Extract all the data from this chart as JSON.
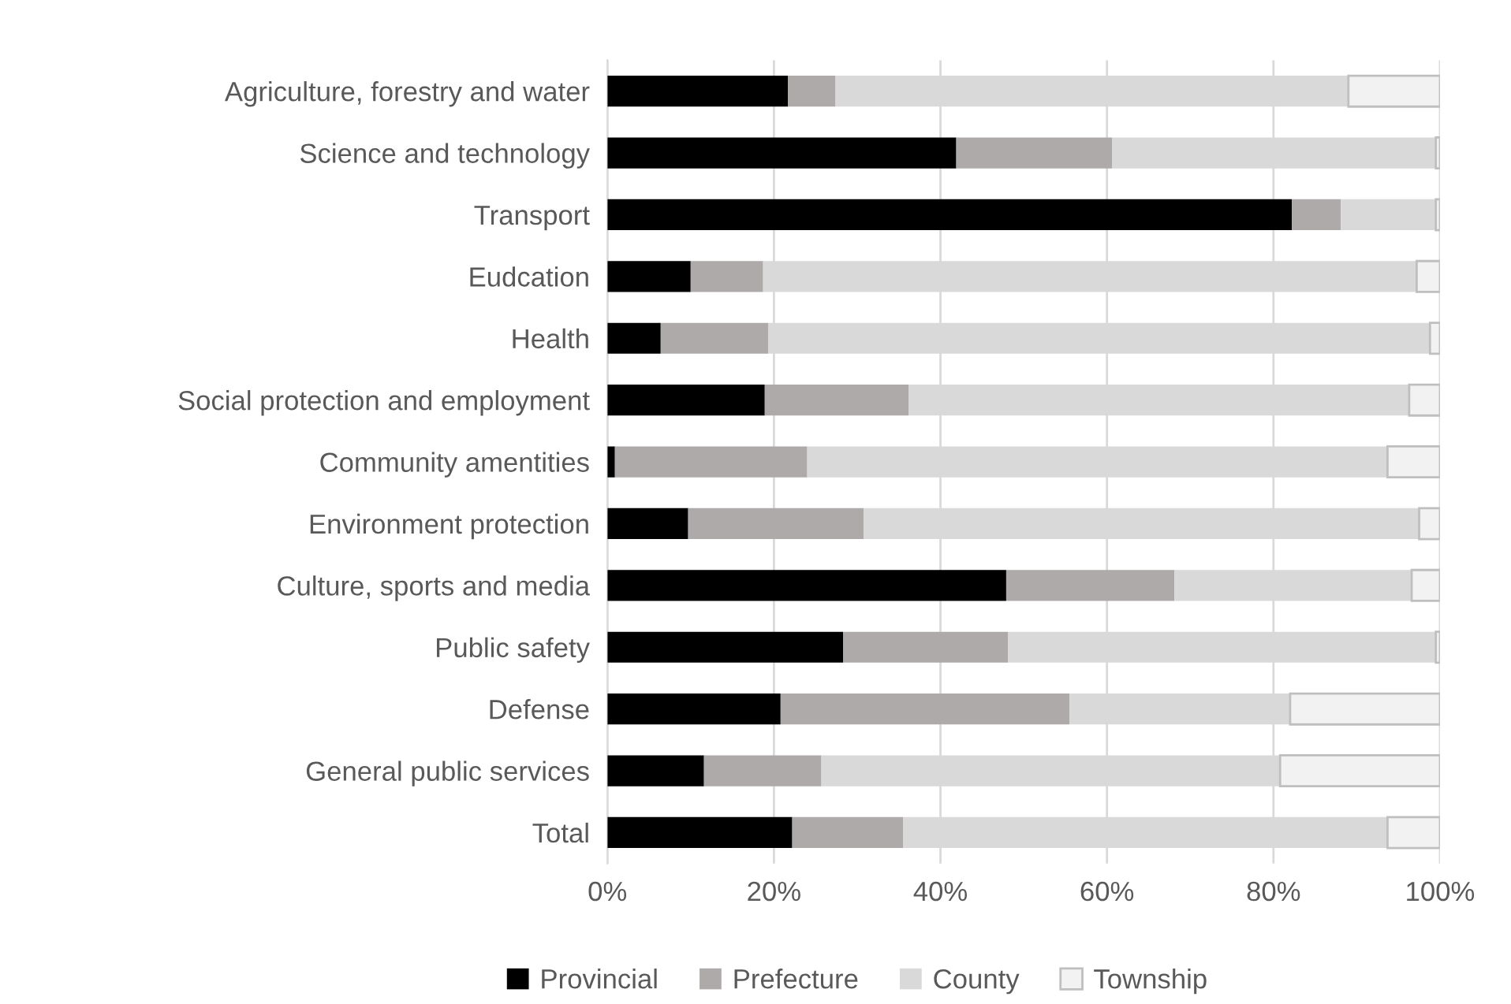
{
  "chart_data": {
    "type": "bar",
    "orientation": "horizontal",
    "stacked": true,
    "categories": [
      "Agriculture, forestry and water",
      "Science and technology",
      "Transport",
      "Eudcation",
      "Health",
      "Social protection and employment",
      "Community amentities",
      "Environment protection",
      "Culture, sports and media",
      "Public safety",
      "Defense",
      "General public services",
      "Total"
    ],
    "series": [
      {
        "name": "Provincial",
        "color": "#000000",
        "values": [
          21.7,
          41.9,
          82.2,
          10.0,
          6.4,
          18.9,
          0.9,
          9.7,
          47.9,
          28.3,
          20.8,
          11.6,
          22.2
        ]
      },
      {
        "name": "Prefecture",
        "color": "#aeaaaa",
        "values": [
          5.7,
          18.7,
          5.9,
          8.7,
          12.9,
          17.3,
          23.1,
          21.1,
          20.2,
          19.8,
          34.7,
          14.1,
          13.3
        ]
      },
      {
        "name": "County",
        "color": "#d9d9d9",
        "values": [
          61.6,
          38.9,
          11.4,
          78.5,
          79.5,
          60.1,
          69.7,
          66.7,
          28.5,
          51.4,
          26.5,
          55.1,
          58.2
        ]
      },
      {
        "name": "Township",
        "color": "#f2f2f2",
        "values": [
          11.0,
          0.5,
          0.5,
          2.8,
          1.2,
          3.7,
          6.3,
          2.5,
          3.4,
          0.5,
          18.0,
          19.2,
          6.3
        ]
      }
    ],
    "xlim": [
      0,
      100
    ],
    "xticks": [
      {
        "value": 0,
        "label": "0%"
      },
      {
        "value": 20,
        "label": "20%"
      },
      {
        "value": 40,
        "label": "40%"
      },
      {
        "value": 60,
        "label": "60%"
      },
      {
        "value": 80,
        "label": "80%"
      },
      {
        "value": 100,
        "label": "100%"
      }
    ],
    "grid": "x",
    "legend": "bottom"
  }
}
